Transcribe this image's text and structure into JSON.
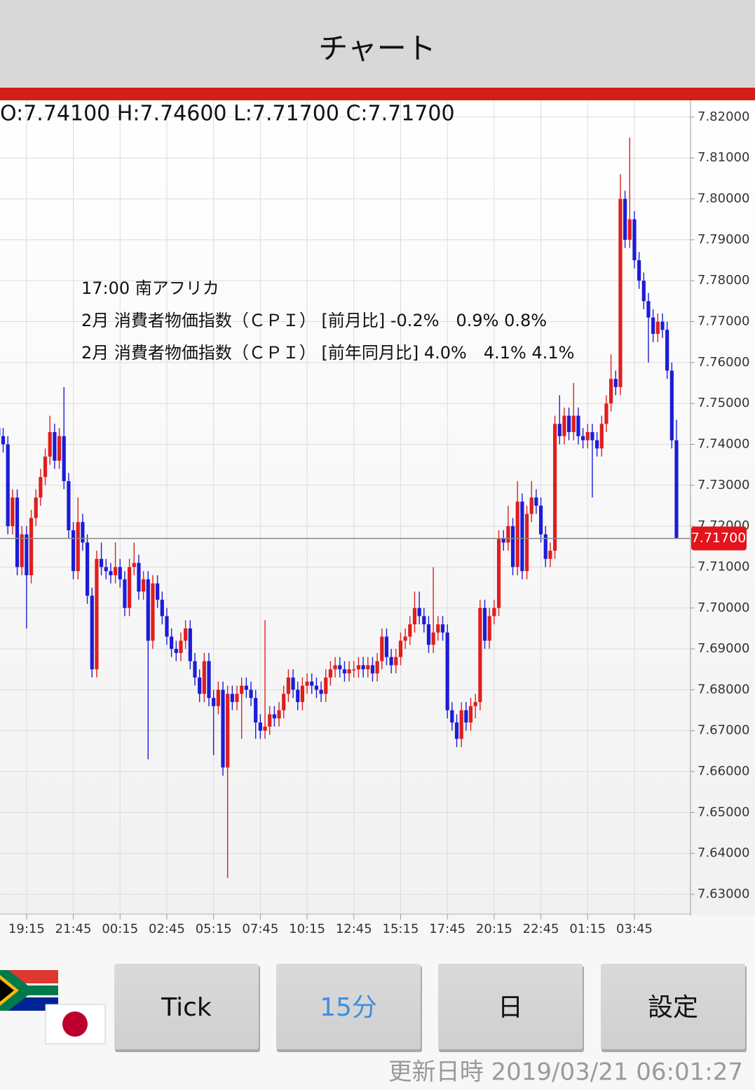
{
  "header": {
    "title": "チャート"
  },
  "chart_data": {
    "type": "candlestick",
    "ohlc_text": "O:7.74100 H:7.74600 L:7.71700 C:7.71700",
    "annotations": [
      "17:00 南アフリカ",
      "2月 消費者物価指数（ＣＰＩ） [前月比] -0.2%　0.9% 0.8%",
      "2月 消費者物価指数（ＣＰＩ） [前年同月比] 4.0%　4.1% 4.1%"
    ],
    "up_color": "#e01e1e",
    "down_color": "#1c1cd8",
    "grid": true,
    "ylim": [
      7.6252,
      7.8241
    ],
    "yticks": [
      {
        "value": 7.63,
        "label": "7.63000"
      },
      {
        "value": 7.64,
        "label": "7.64000"
      },
      {
        "value": 7.65,
        "label": "7.65000"
      },
      {
        "value": 7.66,
        "label": "7.66000"
      },
      {
        "value": 7.67,
        "label": "7.67000"
      },
      {
        "value": 7.68,
        "label": "7.68000"
      },
      {
        "value": 7.69,
        "label": "7.69000"
      },
      {
        "value": 7.7,
        "label": "7.70000"
      },
      {
        "value": 7.71,
        "label": "7.71000"
      },
      {
        "value": 7.72,
        "label": "7.72000"
      },
      {
        "value": 7.73,
        "label": "7.73000"
      },
      {
        "value": 7.74,
        "label": "7.74000"
      },
      {
        "value": 7.75,
        "label": "7.75000"
      },
      {
        "value": 7.76,
        "label": "7.76000"
      },
      {
        "value": 7.77,
        "label": "7.77000"
      },
      {
        "value": 7.78,
        "label": "7.78000"
      },
      {
        "value": 7.79,
        "label": "7.79000"
      },
      {
        "value": 7.8,
        "label": "7.80000"
      },
      {
        "value": 7.81,
        "label": "7.81000"
      },
      {
        "value": 7.82,
        "label": "7.82000"
      }
    ],
    "last_price": {
      "value": 7.717,
      "label": "7.71700"
    },
    "categories": [
      null,
      null,
      null,
      null,
      null,
      null,
      "19:15",
      null,
      null,
      null,
      null,
      null,
      null,
      null,
      null,
      null,
      "21:45",
      null,
      null,
      null,
      null,
      null,
      null,
      null,
      null,
      null,
      "00:15",
      null,
      null,
      null,
      null,
      null,
      null,
      null,
      null,
      null,
      "02:45",
      null,
      null,
      null,
      null,
      null,
      null,
      null,
      null,
      null,
      "05:15",
      null,
      null,
      null,
      null,
      null,
      null,
      null,
      null,
      null,
      "07:45",
      null,
      null,
      null,
      null,
      null,
      null,
      null,
      null,
      null,
      "10:15",
      null,
      null,
      null,
      null,
      null,
      null,
      null,
      null,
      null,
      "12:45",
      null,
      null,
      null,
      null,
      null,
      null,
      null,
      null,
      null,
      "15:15",
      null,
      null,
      null,
      null,
      null,
      null,
      null,
      null,
      null,
      "17:45",
      null,
      null,
      null,
      null,
      null,
      null,
      null,
      null,
      null,
      "20:15",
      null,
      null,
      null,
      null,
      null,
      null,
      null,
      null,
      null,
      "22:45",
      null,
      null,
      null,
      null,
      null,
      null,
      null,
      null,
      null,
      "01:15",
      null,
      null,
      null,
      null,
      null,
      null,
      null,
      null,
      null,
      "03:45",
      null,
      null,
      null,
      null,
      null,
      null,
      null,
      null,
      null
    ],
    "open": [
      7.744,
      7.742,
      7.74,
      7.72,
      7.727,
      7.71,
      7.718,
      7.708,
      7.722,
      7.727,
      7.732,
      7.737,
      7.743,
      7.736,
      7.742,
      7.731,
      7.719,
      7.709,
      7.721,
      7.716,
      7.703,
      7.685,
      7.712,
      7.71,
      7.709,
      7.708,
      7.71,
      7.707,
      7.7,
      7.71,
      7.711,
      7.704,
      7.707,
      7.692,
      7.706,
      7.702,
      7.698,
      7.693,
      7.69,
      7.689,
      7.692,
      7.695,
      7.687,
      7.683,
      7.679,
      7.687,
      7.678,
      7.676,
      7.68,
      7.661,
      7.679,
      7.677,
      7.679,
      7.681,
      7.68,
      7.678,
      7.672,
      7.67,
      7.671,
      7.674,
      7.673,
      7.675,
      7.679,
      7.683,
      7.68,
      7.677,
      7.681,
      7.682,
      7.681,
      7.68,
      7.679,
      7.683,
      7.685,
      7.686,
      7.685,
      7.684,
      7.685,
      7.685,
      7.686,
      7.685,
      7.686,
      7.684,
      7.687,
      7.693,
      7.688,
      7.686,
      7.688,
      7.692,
      7.693,
      7.696,
      7.7,
      7.698,
      7.696,
      7.691,
      7.694,
      7.696,
      7.694,
      7.675,
      7.672,
      7.668,
      7.675,
      7.672,
      7.676,
      7.677,
      7.7,
      7.692,
      7.698,
      7.7,
      7.717,
      7.716,
      7.72,
      7.71,
      7.726,
      7.709,
      7.723,
      7.727,
      7.725,
      7.718,
      7.712,
      7.714,
      7.745,
      7.742,
      7.747,
      7.743,
      7.747,
      7.742,
      7.741,
      7.743,
      7.741,
      7.739,
      7.745,
      7.75,
      7.756,
      7.754,
      7.8,
      7.79,
      7.795,
      7.785,
      7.78,
      7.775,
      7.771,
      7.767,
      7.77,
      7.768,
      7.758,
      7.741
    ],
    "high": [
      7.746,
      7.744,
      7.742,
      7.729,
      7.729,
      7.72,
      7.72,
      7.724,
      7.729,
      7.734,
      7.739,
      7.747,
      7.745,
      7.744,
      7.754,
      7.733,
      7.721,
      7.727,
      7.723,
      7.718,
      7.705,
      7.714,
      7.716,
      7.712,
      7.711,
      7.716,
      7.712,
      7.709,
      7.712,
      7.716,
      7.713,
      7.709,
      7.709,
      7.708,
      7.708,
      7.704,
      7.7,
      7.695,
      7.692,
      7.694,
      7.697,
      7.697,
      7.689,
      7.685,
      7.689,
      7.689,
      7.68,
      7.682,
      7.682,
      7.681,
      7.681,
      7.681,
      7.683,
      7.683,
      7.682,
      7.68,
      7.674,
      7.697,
      7.676,
      7.676,
      7.677,
      7.681,
      7.685,
      7.685,
      7.682,
      7.683,
      7.684,
      7.684,
      7.683,
      7.682,
      7.685,
      7.687,
      7.688,
      7.688,
      7.687,
      7.687,
      7.687,
      7.688,
      7.688,
      7.688,
      7.688,
      7.689,
      7.695,
      7.695,
      7.69,
      7.69,
      7.694,
      7.695,
      7.698,
      7.704,
      7.704,
      7.7,
      7.698,
      7.71,
      7.698,
      7.698,
      7.696,
      7.677,
      7.674,
      7.677,
      7.677,
      7.678,
      7.679,
      7.702,
      7.702,
      7.7,
      7.702,
      7.719,
      7.719,
      7.725,
      7.722,
      7.731,
      7.728,
      7.725,
      7.731,
      7.729,
      7.727,
      7.72,
      7.716,
      7.747,
      7.752,
      7.749,
      7.749,
      7.755,
      7.749,
      7.744,
      7.745,
      7.745,
      7.743,
      7.747,
      7.752,
      7.762,
      7.758,
      7.806,
      7.802,
      7.815,
      7.797,
      7.787,
      7.782,
      7.777,
      7.773,
      7.772,
      7.772,
      7.77,
      7.76,
      7.746
    ],
    "low": [
      7.74,
      7.738,
      7.718,
      7.718,
      7.708,
      7.708,
      7.695,
      7.706,
      7.72,
      7.725,
      7.73,
      7.735,
      7.734,
      7.734,
      7.729,
      7.717,
      7.707,
      7.707,
      7.714,
      7.701,
      7.683,
      7.683,
      7.708,
      7.707,
      7.706,
      7.706,
      7.705,
      7.698,
      7.698,
      7.708,
      7.702,
      7.702,
      7.663,
      7.69,
      7.7,
      7.696,
      7.691,
      7.688,
      7.687,
      7.687,
      7.69,
      7.685,
      7.681,
      7.677,
      7.677,
      7.676,
      7.664,
      7.674,
      7.659,
      7.634,
      7.675,
      7.675,
      7.668,
      7.678,
      7.676,
      7.668,
      7.668,
      7.668,
      7.669,
      7.671,
      7.671,
      7.673,
      7.677,
      7.678,
      7.675,
      7.675,
      7.679,
      7.679,
      7.678,
      7.677,
      7.677,
      7.681,
      7.683,
      7.683,
      7.682,
      7.682,
      7.683,
      7.683,
      7.683,
      7.683,
      7.682,
      7.682,
      7.685,
      7.686,
      7.684,
      7.684,
      7.686,
      7.69,
      7.691,
      7.694,
      7.696,
      7.694,
      7.689,
      7.689,
      7.692,
      7.692,
      7.673,
      7.67,
      7.666,
      7.666,
      7.67,
      7.67,
      7.673,
      7.675,
      7.69,
      7.69,
      7.696,
      7.698,
      7.714,
      7.714,
      7.708,
      7.708,
      7.707,
      7.707,
      7.721,
      7.723,
      7.716,
      7.71,
      7.71,
      7.712,
      7.74,
      7.74,
      7.741,
      7.741,
      7.74,
      7.739,
      7.739,
      7.727,
      7.737,
      7.737,
      7.743,
      7.748,
      7.752,
      7.752,
      7.788,
      7.788,
      7.783,
      7.778,
      7.773,
      7.76,
      7.765,
      7.765,
      7.766,
      7.756,
      7.739,
      7.717
    ],
    "close": [
      7.742,
      7.74,
      7.72,
      7.727,
      7.71,
      7.718,
      7.708,
      7.722,
      7.727,
      7.732,
      7.737,
      7.743,
      7.736,
      7.742,
      7.731,
      7.719,
      7.709,
      7.721,
      7.716,
      7.703,
      7.685,
      7.712,
      7.71,
      7.709,
      7.708,
      7.71,
      7.707,
      7.7,
      7.71,
      7.711,
      7.704,
      7.707,
      7.692,
      7.706,
      7.702,
      7.698,
      7.693,
      7.69,
      7.689,
      7.692,
      7.695,
      7.687,
      7.683,
      7.679,
      7.687,
      7.678,
      7.676,
      7.68,
      7.661,
      7.679,
      7.677,
      7.679,
      7.681,
      7.68,
      7.678,
      7.672,
      7.67,
      7.671,
      7.674,
      7.673,
      7.675,
      7.679,
      7.683,
      7.68,
      7.677,
      7.681,
      7.682,
      7.681,
      7.68,
      7.679,
      7.683,
      7.685,
      7.686,
      7.685,
      7.684,
      7.685,
      7.685,
      7.686,
      7.685,
      7.686,
      7.684,
      7.687,
      7.693,
      7.688,
      7.686,
      7.688,
      7.692,
      7.693,
      7.696,
      7.7,
      7.698,
      7.696,
      7.691,
      7.694,
      7.696,
      7.694,
      7.675,
      7.672,
      7.668,
      7.675,
      7.672,
      7.676,
      7.677,
      7.7,
      7.692,
      7.698,
      7.7,
      7.717,
      7.716,
      7.72,
      7.71,
      7.726,
      7.709,
      7.723,
      7.727,
      7.725,
      7.718,
      7.712,
      7.714,
      7.745,
      7.742,
      7.747,
      7.743,
      7.747,
      7.742,
      7.741,
      7.743,
      7.741,
      7.739,
      7.745,
      7.75,
      7.756,
      7.754,
      7.8,
      7.79,
      7.795,
      7.785,
      7.78,
      7.775,
      7.771,
      7.767,
      7.77,
      7.768,
      7.758,
      7.741,
      7.717
    ]
  },
  "buttons": [
    "Tick",
    "15分",
    "日",
    "設定"
  ],
  "selected_button": 1,
  "footer": {
    "updated": "更新日時 2019/03/21 06:01:27"
  }
}
